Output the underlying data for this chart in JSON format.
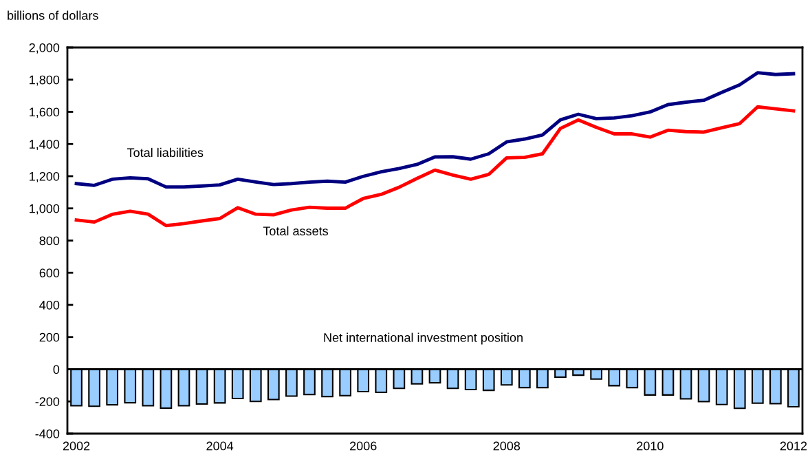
{
  "chart_data": {
    "type": "bar",
    "ylabel": "billions of dollars",
    "categories": [
      "2002",
      null,
      null,
      null,
      null,
      null,
      null,
      null,
      "2004",
      null,
      null,
      null,
      null,
      null,
      null,
      null,
      "2006",
      null,
      null,
      null,
      null,
      null,
      null,
      null,
      "2008",
      null,
      null,
      null,
      null,
      null,
      null,
      null,
      "2010",
      null,
      null,
      null,
      null,
      null,
      null,
      null,
      "2012"
    ],
    "series": [
      {
        "name": "Net international investment position",
        "color": "#99ccff",
        "values": [
          -227,
          -230,
          -221,
          -208,
          -227,
          -242,
          -227,
          -216,
          -209,
          -182,
          -200,
          -188,
          -167,
          -157,
          -170,
          -164,
          -139,
          -143,
          -119,
          -91,
          -84,
          -119,
          -126,
          -131,
          -97,
          -114,
          -114,
          -49,
          -37,
          -61,
          -102,
          -114,
          -160,
          -160,
          -184,
          -201,
          -219,
          -243,
          -211,
          -214,
          -233
        ]
      },
      {
        "name": "Total liabilities",
        "type": "line",
        "color": "#000080",
        "values": [
          1154,
          1143,
          1181,
          1190,
          1184,
          1133,
          1133,
          1139,
          1146,
          1181,
          1164,
          1148,
          1154,
          1163,
          1169,
          1163,
          1199,
          1227,
          1248,
          1273,
          1320,
          1321,
          1306,
          1339,
          1413,
          1431,
          1456,
          1550,
          1585,
          1558,
          1562,
          1576,
          1599,
          1645,
          1660,
          1672,
          1721,
          1768,
          1843,
          1832,
          1837
        ]
      },
      {
        "name": "Total assets",
        "type": "line",
        "color": "#ff0000",
        "values": [
          928,
          915,
          963,
          982,
          964,
          893,
          905,
          922,
          937,
          1004,
          964,
          960,
          990,
          1007,
          1001,
          1001,
          1061,
          1087,
          1131,
          1186,
          1238,
          1207,
          1181,
          1211,
          1314,
          1317,
          1339,
          1497,
          1550,
          1504,
          1463,
          1463,
          1443,
          1486,
          1477,
          1474,
          1501,
          1527,
          1631,
          1619,
          1606
        ]
      }
    ],
    "ylim": [
      -400,
      2000
    ],
    "yticks": [
      {
        "value": -400,
        "label": "-400"
      },
      {
        "value": -200,
        "label": "-200"
      },
      0,
      200,
      400,
      600,
      800,
      {
        "value": 1000,
        "label": "1,000"
      },
      {
        "value": 1200,
        "label": "1,200"
      },
      {
        "value": 1400,
        "label": "1,400"
      },
      {
        "value": 1600,
        "label": "1,600"
      },
      {
        "value": 1800,
        "label": "1,800"
      },
      {
        "value": 2000,
        "label": "2,000"
      }
    ],
    "ref_lines": [
      {
        "axis": "y",
        "value": 0,
        "color": "#000000"
      }
    ],
    "grid": false,
    "legend": false
  }
}
